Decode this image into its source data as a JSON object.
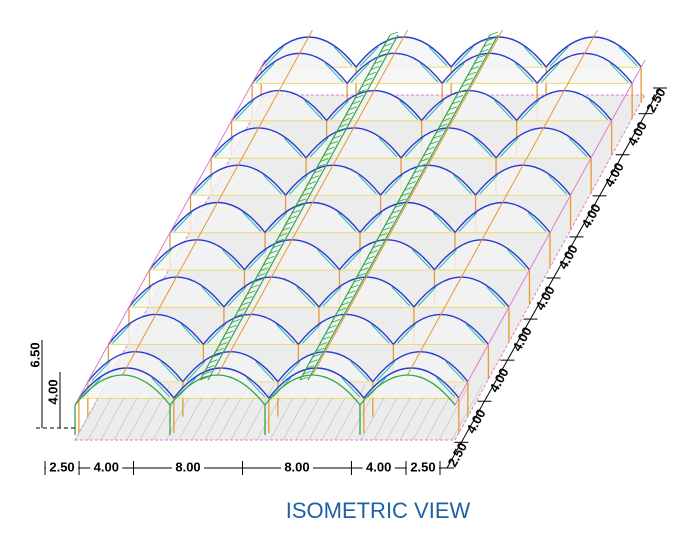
{
  "title": "ISOMETRIC VIEW",
  "dimensions": {
    "width": [
      "2.50",
      "4.00",
      "8.00",
      "8.00",
      "4.00",
      "2.50"
    ],
    "height": [
      "6.50",
      "4.00"
    ],
    "length": [
      "2.50",
      "4.00",
      "4.00",
      "4.00",
      "4.00",
      "4.00",
      "4.00",
      "4.00",
      "4.00",
      "2.50"
    ]
  }
}
